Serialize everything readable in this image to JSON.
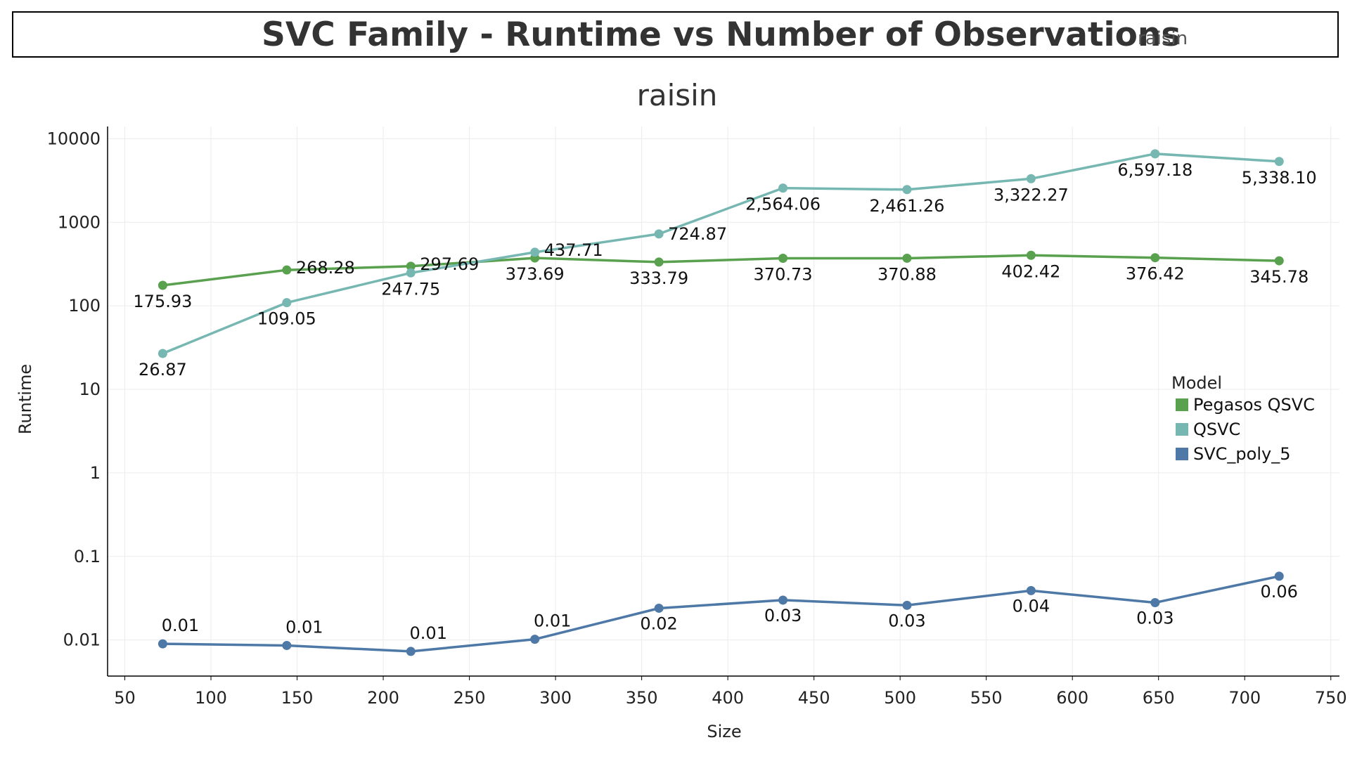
{
  "header": {
    "title": "SVC Family - Runtime vs Number of Observations",
    "filter_value": "raisin"
  },
  "chart_data": {
    "type": "line",
    "title": "raisin",
    "xlabel": "Size",
    "ylabel": "Runtime",
    "xlim": [
      40,
      755
    ],
    "ylim": [
      0.0037,
      14000
    ],
    "y_scale": "log",
    "x_ticks": [
      50,
      100,
      150,
      200,
      250,
      300,
      350,
      400,
      450,
      500,
      550,
      600,
      650,
      700,
      750
    ],
    "y_ticks": [
      0.01,
      0.1,
      1,
      10,
      100,
      1000,
      10000
    ],
    "y_tick_labels": [
      "0.01",
      "0.1",
      "1",
      "10",
      "100",
      "1000",
      "10000"
    ],
    "grid": true,
    "legend": {
      "title": "Model",
      "position": "right"
    },
    "x": [
      72,
      144,
      216,
      288,
      360,
      432,
      504,
      576,
      648,
      720
    ],
    "series": [
      {
        "name": "Pegasos QSVC",
        "color": "#59a14f",
        "values": [
          175.93,
          268.28,
          297.69,
          373.69,
          333.79,
          370.73,
          370.88,
          402.42,
          376.42,
          345.78
        ],
        "labels": [
          "175.93",
          "268.28",
          "297.69",
          "373.69",
          "333.79",
          "370.73",
          "370.88",
          "402.42",
          "376.42",
          "345.78"
        ]
      },
      {
        "name": "QSVC",
        "color": "#76b7b2",
        "values": [
          26.87,
          109.05,
          247.75,
          437.71,
          724.87,
          2564.06,
          2461.26,
          3322.27,
          6597.18,
          5338.1
        ],
        "labels": [
          "26.87",
          "109.05",
          "247.75",
          "437.71",
          "724.87",
          "2,564.06",
          "2,461.26",
          "3,322.27",
          "6,597.18",
          "5,338.10"
        ]
      },
      {
        "name": "SVC_poly_5",
        "color": "#4e79a7",
        "values": [
          0.009,
          0.0086,
          0.0073,
          0.0102,
          0.024,
          0.03,
          0.026,
          0.039,
          0.028,
          0.058
        ],
        "labels": [
          "0.01",
          "0.01",
          "0.01",
          "0.01",
          "0.02",
          "0.03",
          "0.03",
          "0.04",
          "0.03",
          "0.06"
        ]
      }
    ]
  }
}
